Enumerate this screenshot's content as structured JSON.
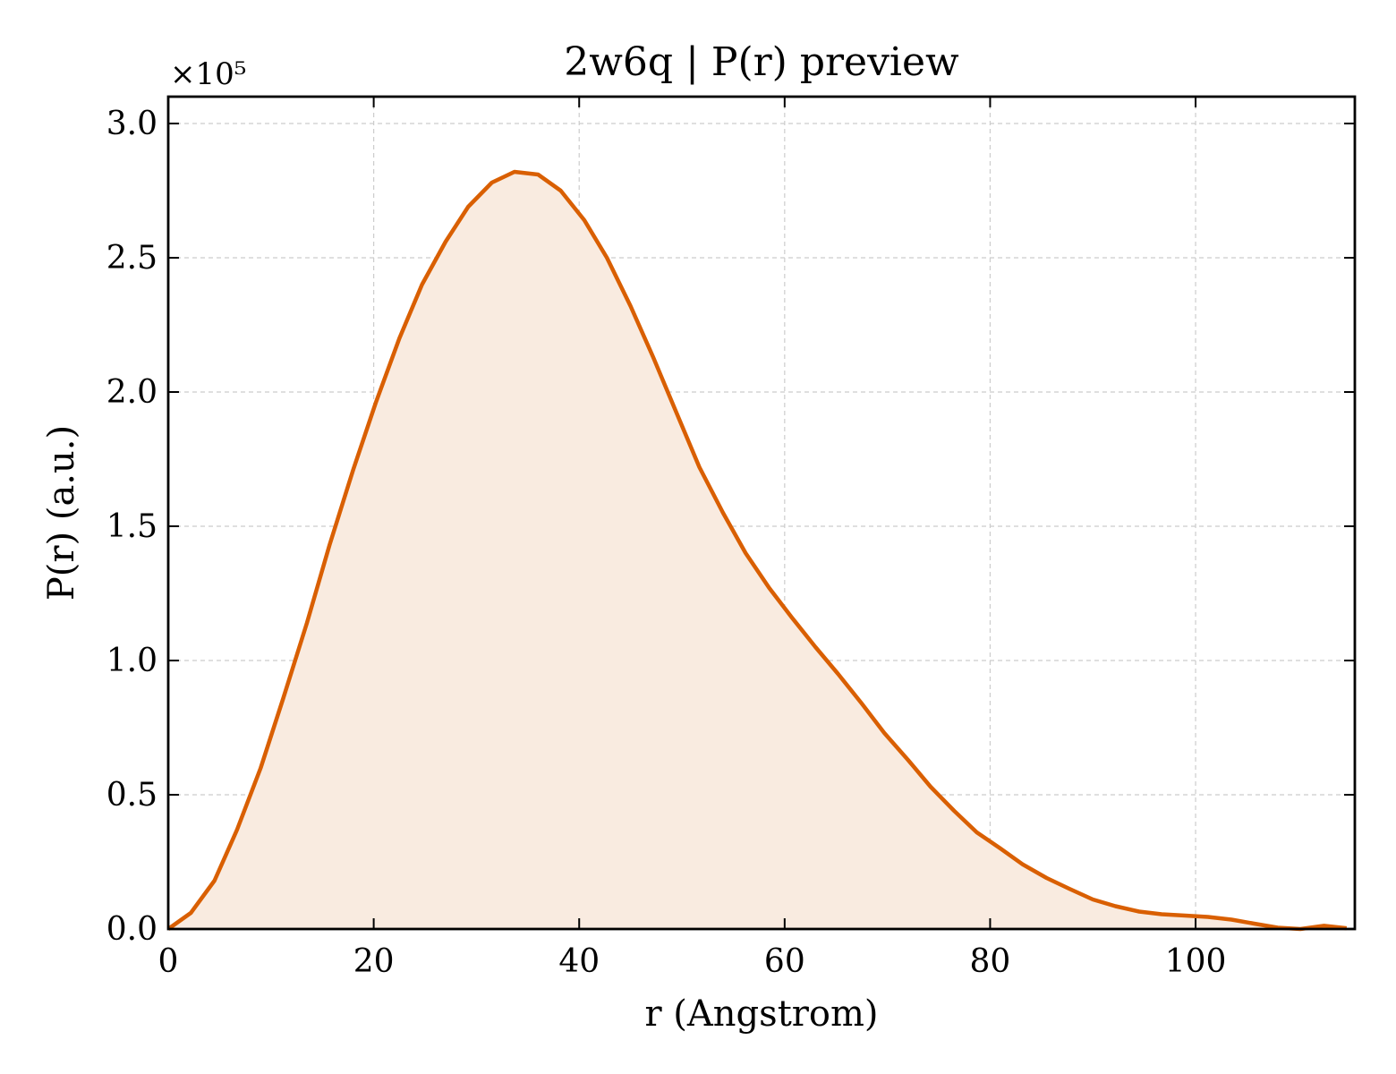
{
  "chart_data": {
    "type": "area",
    "title": "2w6q | P(r) preview",
    "xlabel": "r (Angstrom)",
    "ylabel": "P(r) (a.u.)",
    "y_multiplier_label": "×10⁵",
    "xlim": [
      0,
      115.5
    ],
    "ylim": [
      0,
      3.1
    ],
    "xticks": [
      0,
      20,
      40,
      60,
      80,
      100
    ],
    "xtick_labels": [
      "0",
      "20",
      "40",
      "60",
      "80",
      "100"
    ],
    "yticks": [
      0,
      0.5,
      1.0,
      1.5,
      2.0,
      2.5,
      3.0
    ],
    "ytick_labels": [
      "0.0",
      "0.5",
      "1.0",
      "1.5",
      "2.0",
      "2.5",
      "3.0"
    ],
    "grid": true,
    "line_color": "#d95f02",
    "fill_color": "#f9ebe0",
    "series": [
      {
        "x": [
          0,
          2.2,
          4.5,
          6.7,
          9.0,
          11.2,
          13.5,
          15.7,
          18.0,
          20.2,
          22.5,
          24.7,
          27.0,
          29.2,
          31.5,
          33.7,
          36.0,
          38.2,
          40.5,
          42.7,
          45.0,
          47.2,
          49.5,
          51.7,
          54.0,
          56.2,
          58.5,
          60.7,
          63.0,
          65.2,
          67.5,
          69.7,
          72.0,
          74.2,
          76.5,
          78.7,
          81.0,
          83.2,
          85.5,
          87.7,
          90.0,
          92.2,
          94.5,
          96.7,
          99.0,
          101.2,
          103.5,
          105.7,
          108.0,
          110.2,
          112.5,
          114.7
        ],
        "y": [
          0.0,
          0.06,
          0.18,
          0.37,
          0.6,
          0.86,
          1.14,
          1.43,
          1.71,
          1.96,
          2.2,
          2.4,
          2.56,
          2.69,
          2.78,
          2.82,
          2.81,
          2.75,
          2.64,
          2.5,
          2.32,
          2.13,
          1.92,
          1.72,
          1.55,
          1.4,
          1.27,
          1.16,
          1.05,
          0.95,
          0.84,
          0.73,
          0.63,
          0.53,
          0.44,
          0.36,
          0.3,
          0.24,
          0.19,
          0.15,
          0.11,
          0.085,
          0.065,
          0.055,
          0.05,
          0.045,
          0.035,
          0.02,
          0.005,
          0.0,
          0.012,
          0.003
        ]
      }
    ]
  }
}
